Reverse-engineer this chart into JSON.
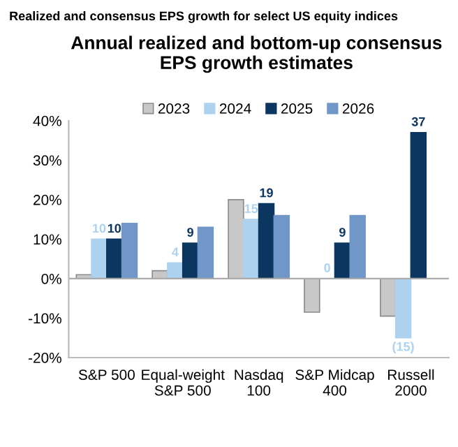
{
  "chart_data": {
    "type": "bar",
    "title": "Annual realized and bottom-up consensus EPS growth estimates",
    "subtitle": "Realized and consensus EPS growth for select US equity indices",
    "categories": [
      "S&P 500",
      "Equal-weight\nS&P 500",
      "Nasdaq\n100",
      "S&P Midcap\n400",
      "Russell\n2000"
    ],
    "series": [
      {
        "name": "2023",
        "color": "#c8c8c8",
        "values": [
          1,
          2,
          20,
          -8.5,
          -9.5
        ]
      },
      {
        "name": "2024",
        "color": "#acd2f0",
        "values": [
          10,
          4,
          15,
          0,
          -15
        ],
        "value_labels": [
          "10",
          "4",
          "15",
          "0",
          "(15)"
        ]
      },
      {
        "name": "2025",
        "color": "#0b3660",
        "values": [
          10,
          9,
          19,
          9,
          37
        ],
        "value_labels": [
          "10",
          "9",
          "19",
          "9",
          "37"
        ]
      },
      {
        "name": "2026",
        "color": "#7097c8",
        "values": [
          14,
          13,
          16,
          16,
          null
        ]
      }
    ],
    "ylim": [
      -20,
      40
    ],
    "yticks": [
      {
        "value": -20,
        "label": "-20%"
      },
      {
        "value": -10,
        "label": "-10%"
      },
      {
        "value": 0,
        "label": "0%"
      },
      {
        "value": 10,
        "label": "10%"
      },
      {
        "value": 20,
        "label": "20%"
      },
      {
        "value": 30,
        "label": "30%"
      },
      {
        "value": 40,
        "label": "40%"
      }
    ],
    "legend": "top"
  }
}
